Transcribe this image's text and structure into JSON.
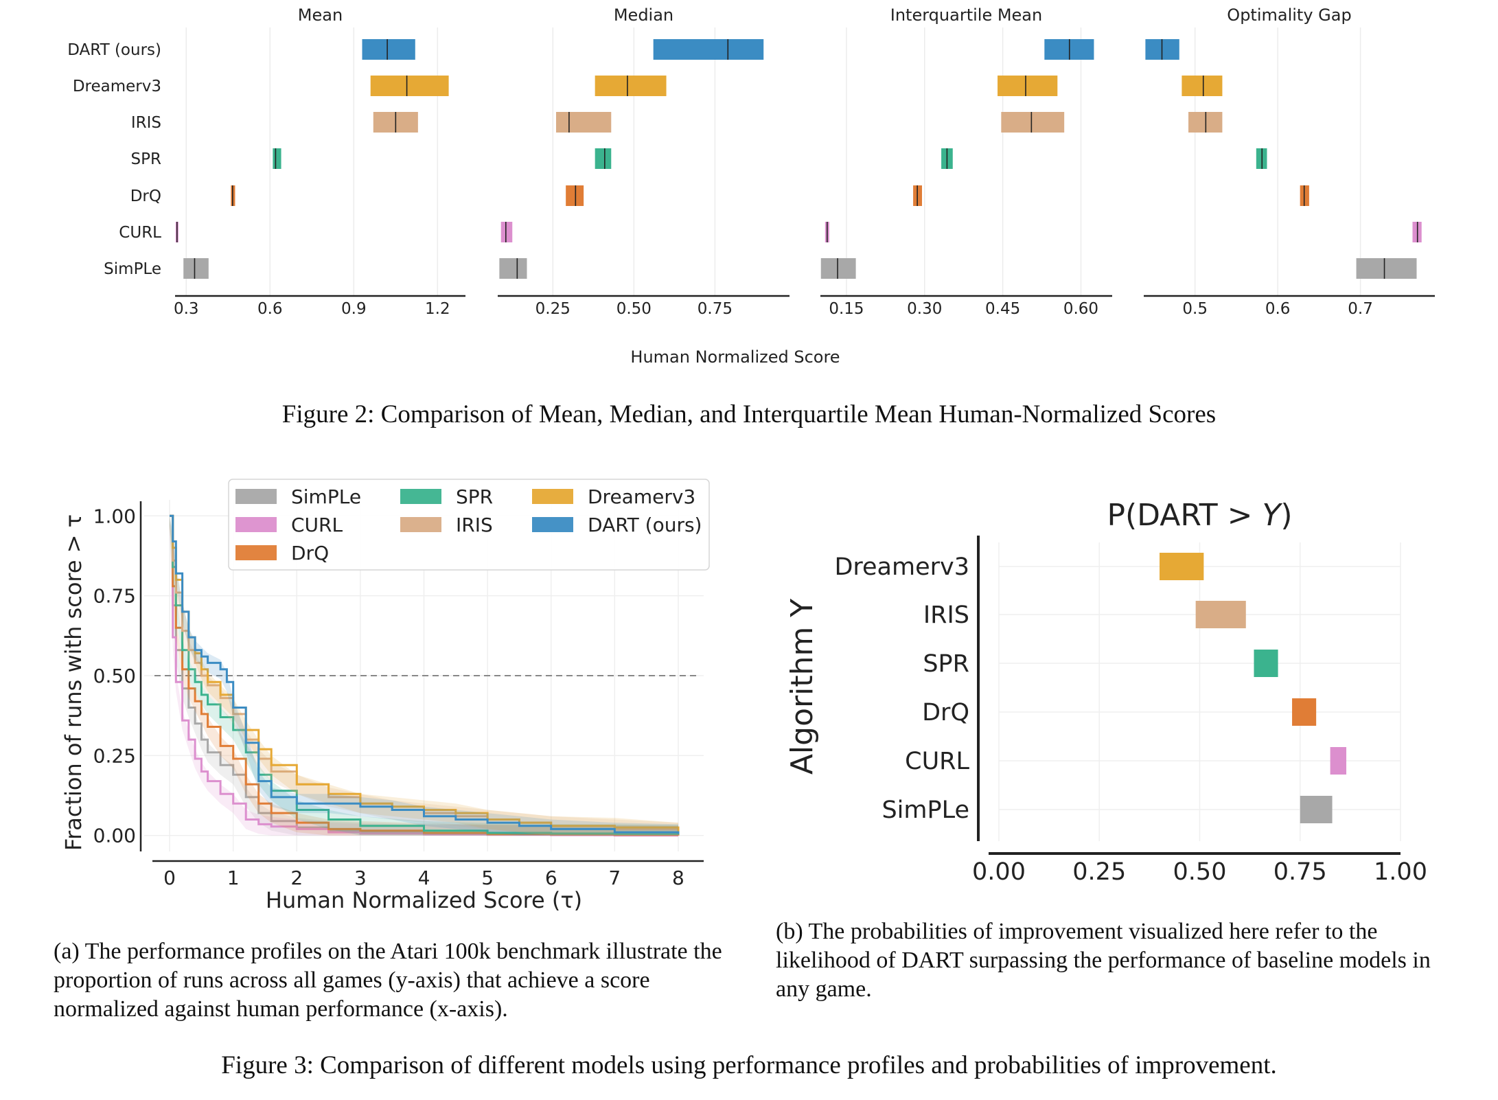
{
  "fig2": {
    "algorithms": [
      "DART (ours)",
      "Dreamerv3",
      "IRIS",
      "SPR",
      "DrQ",
      "CURL",
      "SimPLe"
    ],
    "xlabel": "Human Normalized Score",
    "caption": "Figure 2: Comparison of Mean, Median, and Interquartile Mean Human-Normalized Scores"
  },
  "fig3a": {
    "xlabel": "Human Normalized Score (τ)",
    "ylabel": "Fraction of runs with score > τ",
    "legend": [
      "SimPLe",
      "SPR",
      "Dreamerv3",
      "CURL",
      "IRIS",
      "DART (ours)",
      "DrQ"
    ],
    "caption": "(a) The performance profiles on the Atari 100k benchmark illustrate the proportion of runs across all games (y-axis) that achieve a score normalized against human performance (x-axis)."
  },
  "fig3b": {
    "title_prefix": "P(DART > ",
    "title_var": "Y",
    "title_suffix": ")",
    "ylabel": "Algorithm Y",
    "caption": "(b) The probabilities of improvement visualized here refer to the likelihood of DART surpassing the performance of baseline models in any game."
  },
  "fig3_caption": "Figure 3: Comparison of different models using performance profiles and probabilities of improvement.",
  "colors": {
    "DART (ours)": "#3b8cc3",
    "Dreamerv3": "#e6a935",
    "IRIS": "#d9ad87",
    "SPR": "#3bb38e",
    "DrQ": "#e07d36",
    "CURL": "#dc8fce",
    "SimPLe": "#a8a8a8"
  },
  "chart_data": [
    {
      "type": "bar",
      "title": "Mean",
      "xlim": [
        0.26,
        1.3
      ],
      "ticks": [
        0.3,
        0.6,
        0.9,
        1.2
      ],
      "tick_labels": [
        "0.3",
        "0.6",
        "0.9",
        "1.2"
      ],
      "intervals": [
        {
          "name": "DART (ours)",
          "low": 0.93,
          "high": 1.12,
          "point": 1.02
        },
        {
          "name": "Dreamerv3",
          "low": 0.96,
          "high": 1.24,
          "point": 1.09
        },
        {
          "name": "IRIS",
          "low": 0.97,
          "high": 1.13,
          "point": 1.05
        },
        {
          "name": "SPR",
          "low": 0.61,
          "high": 0.64,
          "point": 0.62
        },
        {
          "name": "DrQ",
          "low": 0.46,
          "high": 0.475,
          "point": 0.466
        },
        {
          "name": "CURL",
          "low": 0.262,
          "high": 0.272,
          "point": 0.267
        },
        {
          "name": "SimPLe",
          "low": 0.29,
          "high": 0.38,
          "point": 0.33
        }
      ]
    },
    {
      "type": "bar",
      "title": "Median",
      "xlim": [
        0.08,
        0.98
      ],
      "ticks": [
        0.25,
        0.5,
        0.75
      ],
      "tick_labels": [
        "0.25",
        "0.50",
        "0.75"
      ],
      "intervals": [
        {
          "name": "DART (ours)",
          "low": 0.56,
          "high": 0.9,
          "point": 0.79
        },
        {
          "name": "Dreamerv3",
          "low": 0.38,
          "high": 0.6,
          "point": 0.48
        },
        {
          "name": "IRIS",
          "low": 0.26,
          "high": 0.43,
          "point": 0.3
        },
        {
          "name": "SPR",
          "low": 0.38,
          "high": 0.43,
          "point": 0.41
        },
        {
          "name": "DrQ",
          "low": 0.29,
          "high": 0.345,
          "point": 0.32
        },
        {
          "name": "CURL",
          "low": 0.09,
          "high": 0.125,
          "point": 0.105
        },
        {
          "name": "SimPLe",
          "low": 0.085,
          "high": 0.17,
          "point": 0.14
        }
      ]
    },
    {
      "type": "bar",
      "title": "Interquartile Mean",
      "xlim": [
        0.1,
        0.66
      ],
      "ticks": [
        0.15,
        0.3,
        0.45,
        0.6
      ],
      "tick_labels": [
        "0.15",
        "0.30",
        "0.45",
        "0.60"
      ],
      "intervals": [
        {
          "name": "DART (ours)",
          "low": 0.53,
          "high": 0.625,
          "point": 0.578
        },
        {
          "name": "Dreamerv3",
          "low": 0.44,
          "high": 0.555,
          "point": 0.494
        },
        {
          "name": "IRIS",
          "low": 0.447,
          "high": 0.568,
          "point": 0.505
        },
        {
          "name": "SPR",
          "low": 0.332,
          "high": 0.354,
          "point": 0.343
        },
        {
          "name": "DrQ",
          "low": 0.278,
          "high": 0.295,
          "point": 0.286
        },
        {
          "name": "CURL",
          "low": 0.109,
          "high": 0.117,
          "point": 0.113
        },
        {
          "name": "SimPLe",
          "low": 0.101,
          "high": 0.168,
          "point": 0.133
        }
      ]
    },
    {
      "type": "bar",
      "title": "Optimality Gap",
      "xlim": [
        0.438,
        0.79
      ],
      "ticks": [
        0.5,
        0.6,
        0.7
      ],
      "tick_labels": [
        "0.5",
        "0.6",
        "0.7"
      ],
      "intervals": [
        {
          "name": "DART (ours)",
          "low": 0.44,
          "high": 0.481,
          "point": 0.46
        },
        {
          "name": "Dreamerv3",
          "low": 0.484,
          "high": 0.533,
          "point": 0.51
        },
        {
          "name": "IRIS",
          "low": 0.492,
          "high": 0.533,
          "point": 0.513
        },
        {
          "name": "SPR",
          "low": 0.574,
          "high": 0.587,
          "point": 0.581
        },
        {
          "name": "DrQ",
          "low": 0.627,
          "high": 0.638,
          "point": 0.632
        },
        {
          "name": "CURL",
          "low": 0.763,
          "high": 0.774,
          "point": 0.769
        },
        {
          "name": "SimPLe",
          "low": 0.695,
          "high": 0.768,
          "point": 0.729
        }
      ]
    },
    {
      "type": "line",
      "xlim": [
        -0.4,
        8.4
      ],
      "ylim": [
        -0.05,
        1.05
      ],
      "xticks": [
        0,
        1,
        2,
        3,
        4,
        5,
        6,
        7,
        8
      ],
      "yticks": [
        0.0,
        0.25,
        0.5,
        0.75,
        1.0
      ],
      "ytick_labels": [
        "0.00",
        "0.25",
        "0.50",
        "0.75",
        "1.00"
      ],
      "reference_line": 0.5,
      "grid": true,
      "legend_position": "top",
      "series": [
        {
          "name": "SimPLe",
          "x": [
            0,
            0.05,
            0.1,
            0.2,
            0.3,
            0.4,
            0.5,
            0.6,
            0.8,
            1.0,
            1.2,
            1.4,
            1.6,
            2.0,
            2.5,
            3,
            4,
            5,
            6,
            7,
            8
          ],
          "y": [
            1.0,
            0.72,
            0.58,
            0.46,
            0.4,
            0.35,
            0.3,
            0.26,
            0.22,
            0.19,
            0.12,
            0.07,
            0.045,
            0.025,
            0.015,
            0.01,
            0.005,
            0.003,
            0.002,
            0.001,
            0.0
          ]
        },
        {
          "name": "CURL",
          "x": [
            0,
            0.05,
            0.1,
            0.2,
            0.3,
            0.4,
            0.5,
            0.6,
            0.8,
            1.0,
            1.2,
            1.4,
            1.6,
            2.0,
            2.5,
            3,
            4,
            5,
            6,
            7,
            8
          ],
          "y": [
            1.0,
            0.62,
            0.48,
            0.36,
            0.3,
            0.24,
            0.2,
            0.17,
            0.13,
            0.1,
            0.05,
            0.035,
            0.028,
            0.02,
            0.01,
            0.006,
            0.003,
            0.002,
            0.001,
            0.0,
            0.0
          ]
        },
        {
          "name": "DrQ",
          "x": [
            0,
            0.05,
            0.1,
            0.2,
            0.3,
            0.4,
            0.5,
            0.6,
            0.8,
            1.0,
            1.2,
            1.4,
            1.6,
            2.0,
            2.5,
            3,
            4,
            5,
            6,
            7,
            8
          ],
          "y": [
            1.0,
            0.78,
            0.65,
            0.52,
            0.46,
            0.42,
            0.38,
            0.34,
            0.28,
            0.24,
            0.16,
            0.1,
            0.07,
            0.04,
            0.02,
            0.015,
            0.008,
            0.004,
            0.003,
            0.002,
            0.0
          ]
        },
        {
          "name": "SPR",
          "x": [
            0,
            0.05,
            0.1,
            0.2,
            0.3,
            0.4,
            0.5,
            0.6,
            0.8,
            1.0,
            1.2,
            1.4,
            1.6,
            2.0,
            2.5,
            3,
            4,
            5,
            6,
            7,
            8
          ],
          "y": [
            1.0,
            0.84,
            0.72,
            0.58,
            0.52,
            0.48,
            0.44,
            0.41,
            0.37,
            0.33,
            0.26,
            0.19,
            0.14,
            0.08,
            0.05,
            0.03,
            0.015,
            0.008,
            0.006,
            0.005,
            0.003
          ]
        },
        {
          "name": "IRIS",
          "x": [
            0,
            0.05,
            0.1,
            0.2,
            0.3,
            0.4,
            0.5,
            0.6,
            0.8,
            1.0,
            1.2,
            1.4,
            1.6,
            2.0,
            2.5,
            3,
            3.5,
            4,
            4.5,
            5,
            5.5,
            6,
            7,
            8
          ],
          "y": [
            1.0,
            0.86,
            0.76,
            0.64,
            0.58,
            0.54,
            0.5,
            0.47,
            0.43,
            0.38,
            0.3,
            0.24,
            0.2,
            0.16,
            0.12,
            0.1,
            0.08,
            0.07,
            0.06,
            0.05,
            0.04,
            0.03,
            0.02,
            0.01
          ]
        },
        {
          "name": "Dreamerv3",
          "x": [
            0,
            0.05,
            0.1,
            0.2,
            0.3,
            0.4,
            0.5,
            0.6,
            0.8,
            1.0,
            1.2,
            1.4,
            1.6,
            2.0,
            2.5,
            3,
            3.5,
            4,
            4.5,
            5,
            5.5,
            6,
            7,
            8
          ],
          "y": [
            1.0,
            0.9,
            0.8,
            0.7,
            0.62,
            0.57,
            0.52,
            0.48,
            0.44,
            0.4,
            0.33,
            0.27,
            0.22,
            0.16,
            0.13,
            0.1,
            0.09,
            0.08,
            0.07,
            0.05,
            0.04,
            0.03,
            0.025,
            0.01
          ]
        },
        {
          "name": "DART (ours)",
          "x": [
            0,
            0.05,
            0.1,
            0.2,
            0.3,
            0.4,
            0.5,
            0.6,
            0.8,
            0.9,
            1.0,
            1.2,
            1.4,
            1.6,
            2.0,
            2.5,
            3,
            3.5,
            4,
            4.5,
            5,
            5.5,
            6,
            7,
            8
          ],
          "y": [
            1.0,
            0.92,
            0.82,
            0.7,
            0.62,
            0.58,
            0.56,
            0.54,
            0.52,
            0.48,
            0.4,
            0.29,
            0.17,
            0.12,
            0.1,
            0.1,
            0.09,
            0.08,
            0.06,
            0.05,
            0.04,
            0.03,
            0.02,
            0.01,
            0.005
          ]
        }
      ]
    },
    {
      "type": "bar",
      "xlim": [
        0.0,
        1.0
      ],
      "ticks": [
        0.0,
        0.25,
        0.5,
        0.75,
        1.0
      ],
      "tick_labels": [
        "0.00",
        "0.25",
        "0.50",
        "0.75",
        "1.00"
      ],
      "intervals": [
        {
          "name": "Dreamerv3",
          "low": 0.4,
          "high": 0.51
        },
        {
          "name": "IRIS",
          "low": 0.49,
          "high": 0.615
        },
        {
          "name": "SPR",
          "low": 0.635,
          "high": 0.695
        },
        {
          "name": "DrQ",
          "low": 0.73,
          "high": 0.79
        },
        {
          "name": "CURL",
          "low": 0.825,
          "high": 0.865
        },
        {
          "name": "SimPLe",
          "low": 0.75,
          "high": 0.83
        }
      ]
    }
  ]
}
